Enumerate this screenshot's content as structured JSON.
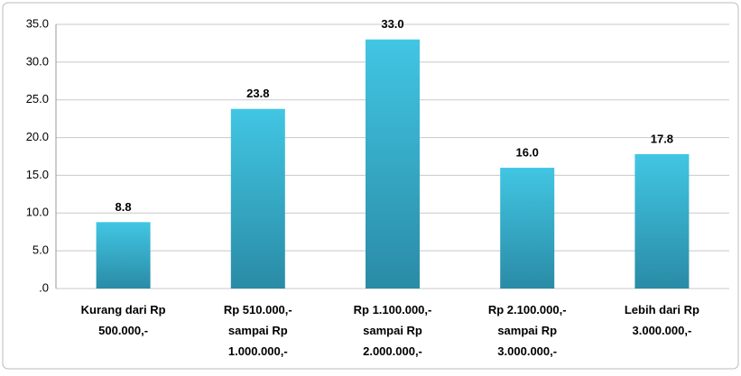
{
  "chart_data": {
    "type": "bar",
    "categories": [
      "Kurang dari Rp\n500.000,-",
      "Rp 510.000,-\nsampai  Rp\n1.000.000,-",
      "Rp 1.100.000,-\nsampai  Rp\n2.000.000,-",
      "Rp 2.100.000,-\nsampai  Rp\n3.000.000,-",
      "Lebih dari Rp\n3.000.000,-"
    ],
    "values": [
      8.8,
      23.8,
      33.0,
      16.0,
      17.8
    ],
    "value_labels": [
      "8.8",
      "23.8",
      "33.0",
      "16.0",
      "17.8"
    ],
    "color": "#3bbcd9",
    "ylim": [
      0,
      35
    ],
    "yticks": [
      {
        "value": 0,
        "label": ".0"
      },
      {
        "value": 5,
        "label": "5.0"
      },
      {
        "value": 10,
        "label": "10.0"
      },
      {
        "value": 15,
        "label": "15.0"
      },
      {
        "value": 20,
        "label": "20.0"
      },
      {
        "value": 25,
        "label": "25.0"
      },
      {
        "value": 30,
        "label": "30.0"
      },
      {
        "value": 35,
        "label": "35.0"
      }
    ],
    "grid": true
  }
}
